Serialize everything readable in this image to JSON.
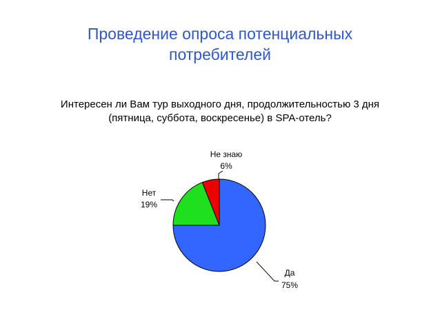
{
  "title": {
    "line1": "Проведение опроса потенциальных",
    "line2": "потребителей"
  },
  "question": {
    "line1": "Интересен ли Вам тур выходного дня, продолжительностью 3 дня",
    "line2": "(пятница, суббота, воскресенье) в SPA-отель?"
  },
  "chart_data": {
    "type": "pie",
    "slices": [
      {
        "label": "Да",
        "value": 75,
        "value_label": "75%",
        "color": "#3366ff"
      },
      {
        "label": "Нет",
        "value": 19,
        "value_label": "19%",
        "color": "#1fe01f"
      },
      {
        "label": "Не знаю",
        "value": 6,
        "value_label": "6%",
        "color": "#ee0000"
      }
    ]
  }
}
